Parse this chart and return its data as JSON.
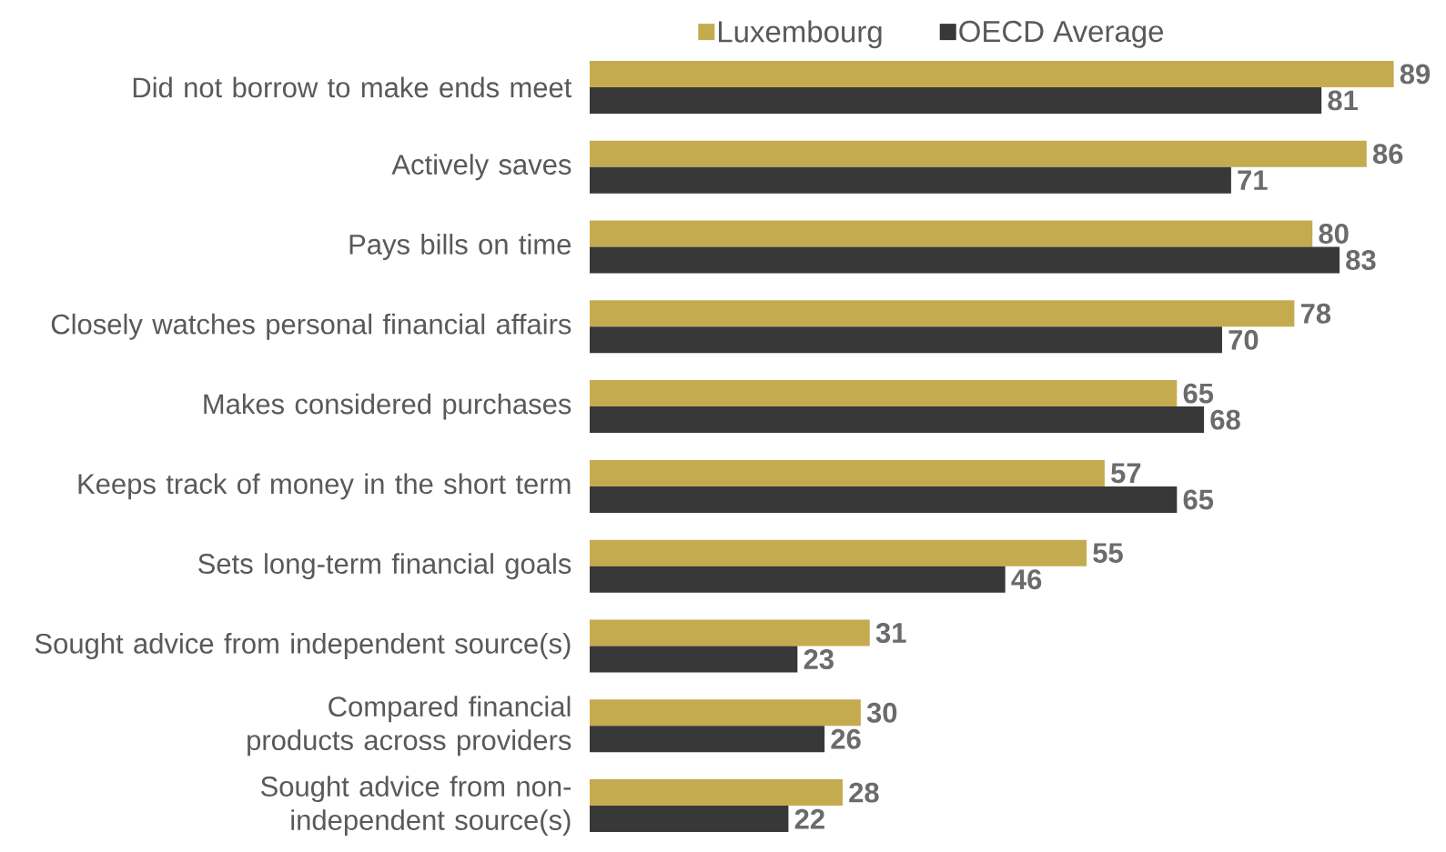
{
  "chart_data": {
    "type": "bar",
    "orientation": "horizontal",
    "data_labels": true,
    "legend": "top",
    "categories": [
      "Did not borrow to make ends meet",
      "Actively saves",
      "Pays bills on time",
      "Closely watches personal financial affairs",
      "Makes considered purchases",
      "Keeps track of money in the short term",
      "Sets long-term financial goals",
      "Sought advice from independent source(s)",
      "Compared financial products across providers",
      "Sought advice from non-independent source(s)"
    ],
    "series": [
      {
        "name": "Luxembourg",
        "color": "#c4ab50",
        "values": [
          89,
          86,
          80,
          78,
          65,
          57,
          55,
          31,
          30,
          28
        ]
      },
      {
        "name": "OECD Average",
        "color": "#383838",
        "values": [
          81,
          71,
          83,
          70,
          68,
          65,
          46,
          23,
          26,
          22
        ]
      }
    ]
  }
}
